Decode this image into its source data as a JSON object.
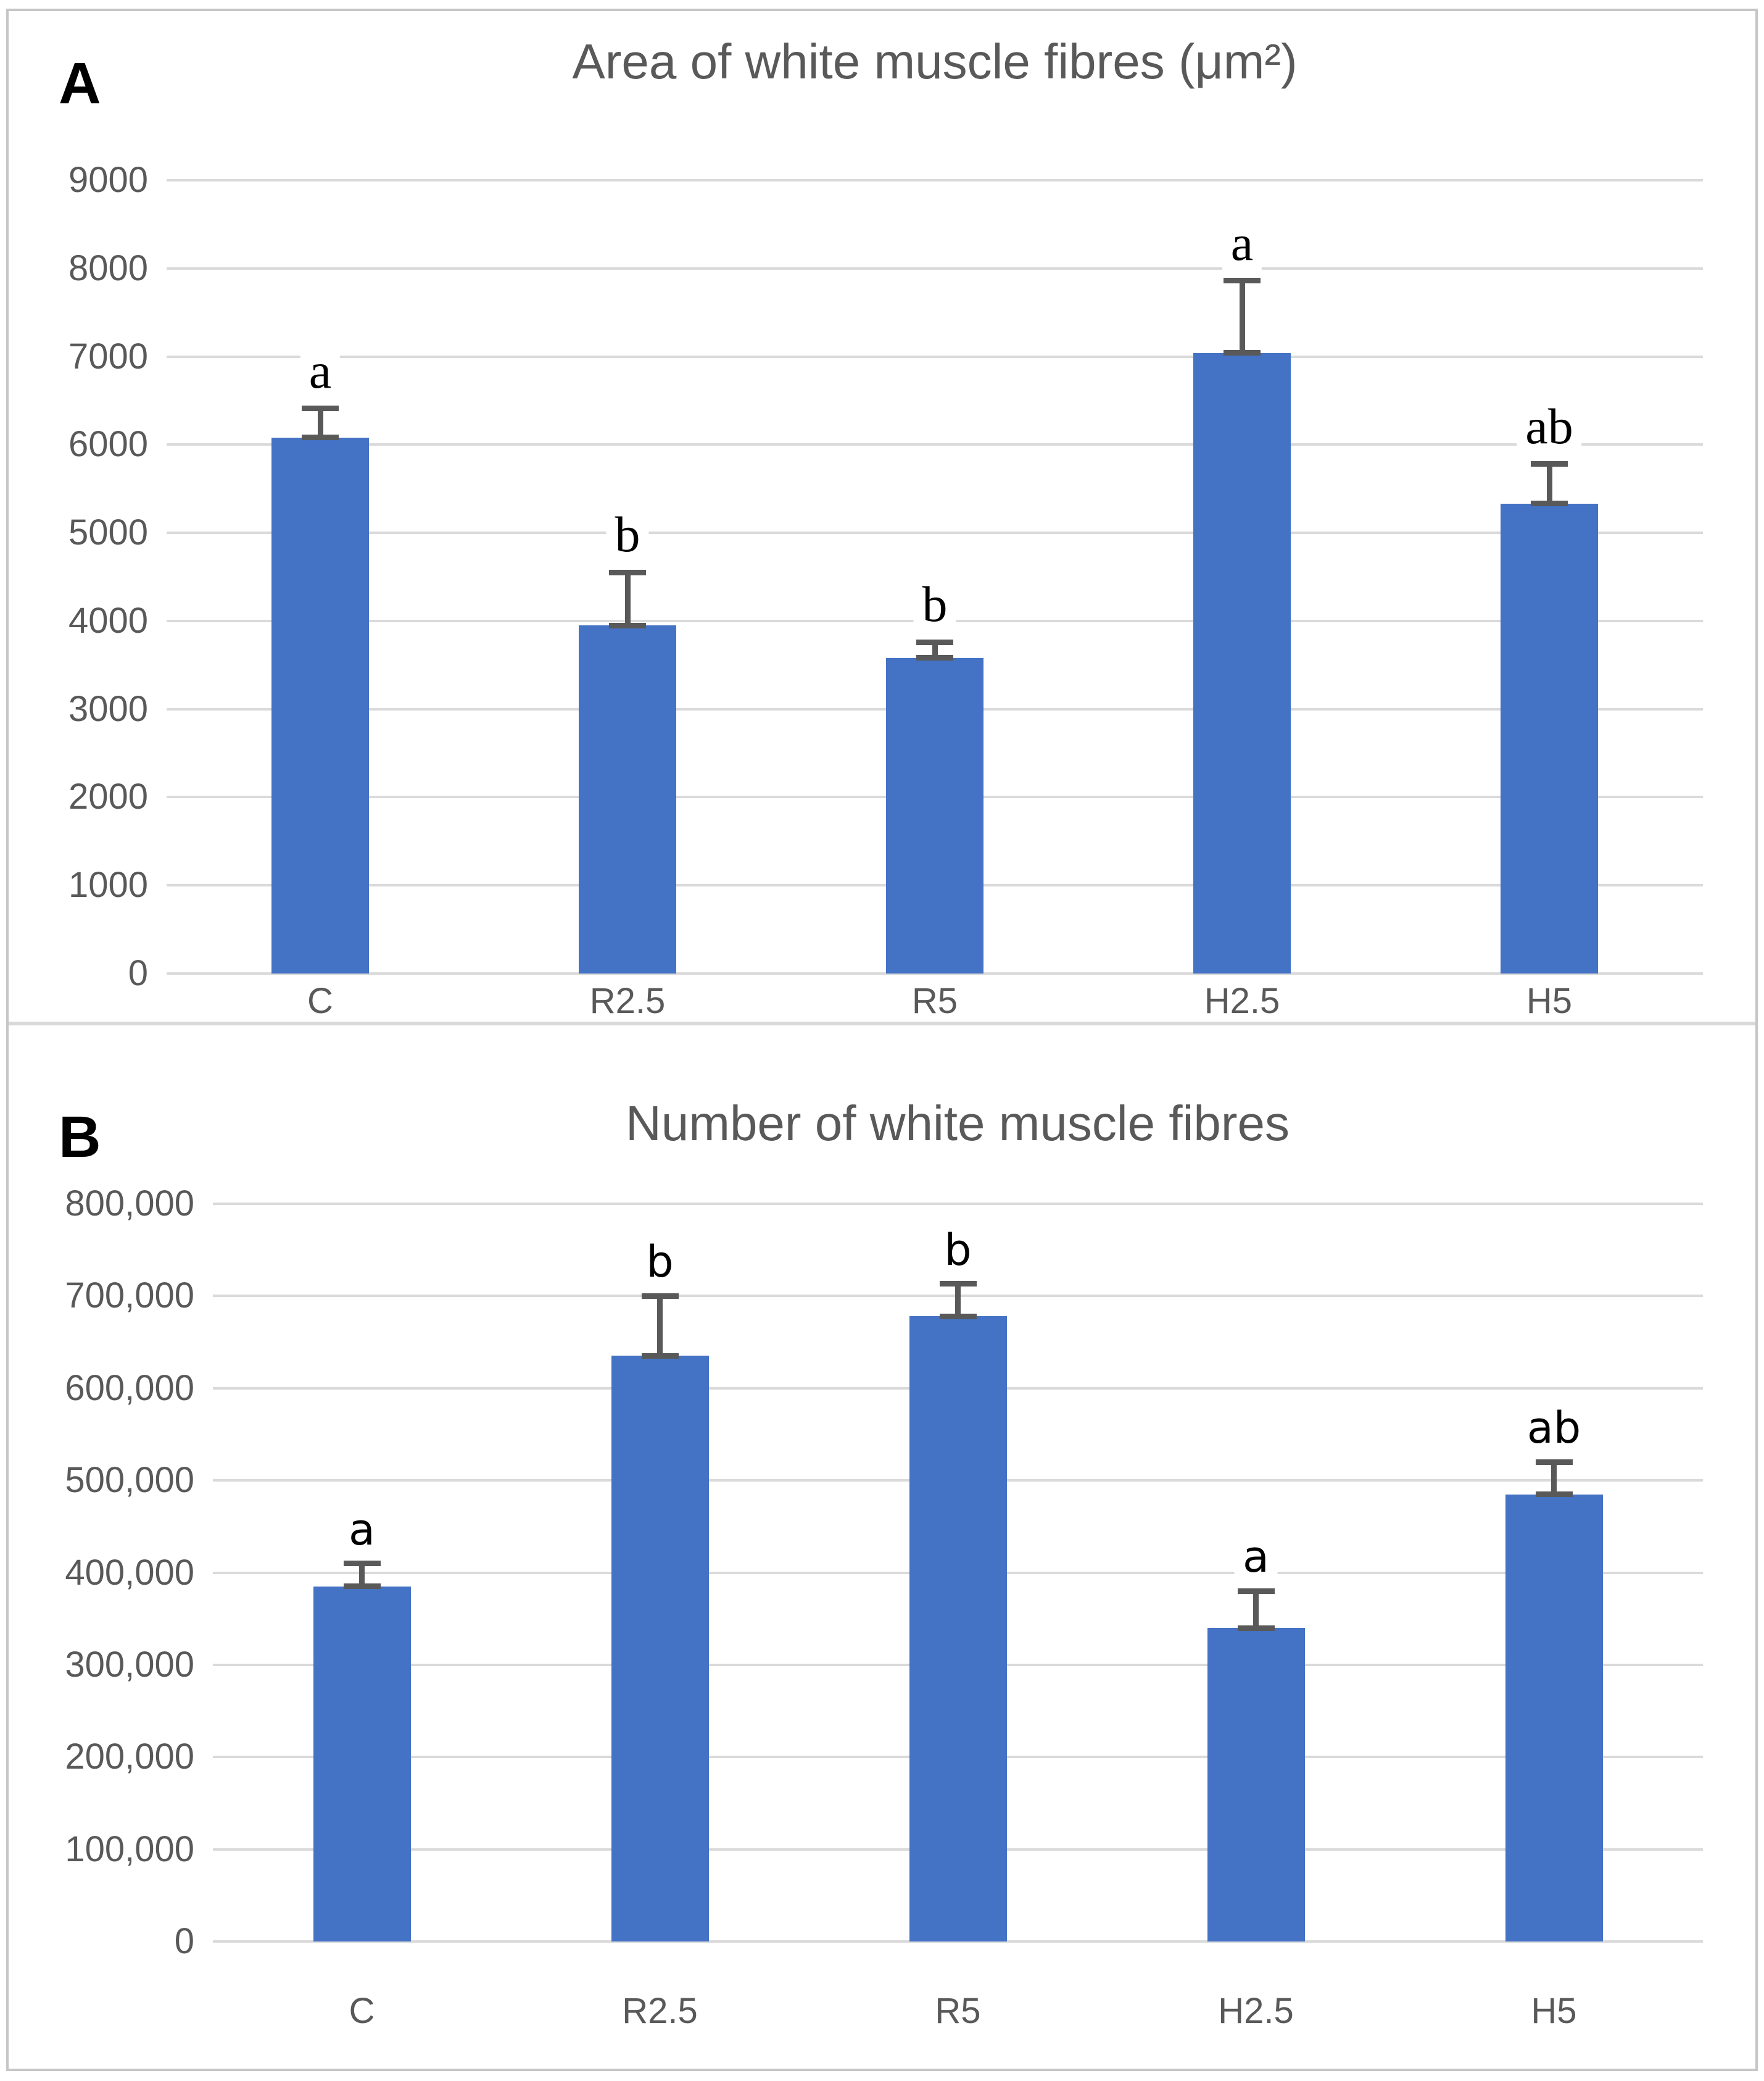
{
  "figure": {
    "description": "Two-panel bar chart of white muscle fibre morphometrics"
  },
  "colors": {
    "bar": "#4472c4",
    "error_bar": "#595959",
    "gridline": "#dadada",
    "axis_text": "#595959",
    "title_text": "#595959",
    "sig_letter": "#000000",
    "border": "#c6c6c6"
  },
  "chart_data": [
    {
      "type": "bar",
      "panel_label": "A",
      "title": "Area of white muscle fibres (μm²)",
      "categories": [
        "C",
        "R2.5",
        "R5",
        "H2.5",
        "H5"
      ],
      "values": [
        6080,
        3950,
        3580,
        7040,
        5330
      ],
      "errors_plus": [
        330,
        600,
        180,
        820,
        450
      ],
      "sig_letters": [
        "a",
        "b",
        "b",
        "a",
        "ab"
      ],
      "xlabel": "",
      "ylabel": "",
      "ylim": [
        0,
        9000
      ],
      "ytick_step": 1000,
      "ytick_labels": [
        "0",
        "1000",
        "2000",
        "3000",
        "4000",
        "5000",
        "6000",
        "7000",
        "8000",
        "9000"
      ],
      "grid": "horizontal",
      "legend": "none"
    },
    {
      "type": "bar",
      "panel_label": "B",
      "title": "Number of white muscle fibres",
      "categories": [
        "C",
        "R2.5",
        "R5",
        "H2.5",
        "H5"
      ],
      "values": [
        385000,
        635000,
        678000,
        340000,
        485000
      ],
      "errors_plus": [
        25000,
        65000,
        35000,
        40000,
        35000
      ],
      "sig_letters": [
        "a",
        "b",
        "b",
        "a",
        "ab"
      ],
      "xlabel": "",
      "ylabel": "",
      "ylim": [
        0,
        800000
      ],
      "ytick_step": 100000,
      "ytick_labels": [
        "0",
        "100,000",
        "200,000",
        "300,000",
        "400,000",
        "500,000",
        "600,000",
        "700,000",
        "800,000"
      ],
      "grid": "horizontal",
      "legend": "none"
    }
  ]
}
